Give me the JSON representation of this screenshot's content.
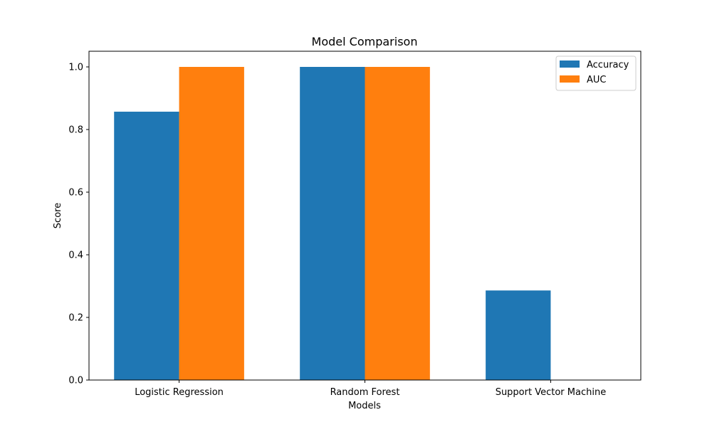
{
  "chart_data": {
    "type": "bar",
    "title": "Model Comparison",
    "xlabel": "Models",
    "ylabel": "Score",
    "categories": [
      "Logistic Regression",
      "Random Forest",
      "Support Vector Machine"
    ],
    "series": [
      {
        "name": "Accuracy",
        "values": [
          0.857,
          1.0,
          0.286
        ],
        "color": "#1f77b4"
      },
      {
        "name": "AUC",
        "values": [
          1.0,
          1.0,
          0.0
        ],
        "color": "#ff7f0e"
      }
    ],
    "ylim": [
      0,
      1.05
    ],
    "yticks": [
      0.0,
      0.2,
      0.4,
      0.6,
      0.8,
      1.0
    ],
    "ytick_labels": [
      "0.0",
      "0.2",
      "0.4",
      "0.6",
      "0.8",
      "1.0"
    ],
    "grid": false,
    "legend_position": "top-right"
  }
}
